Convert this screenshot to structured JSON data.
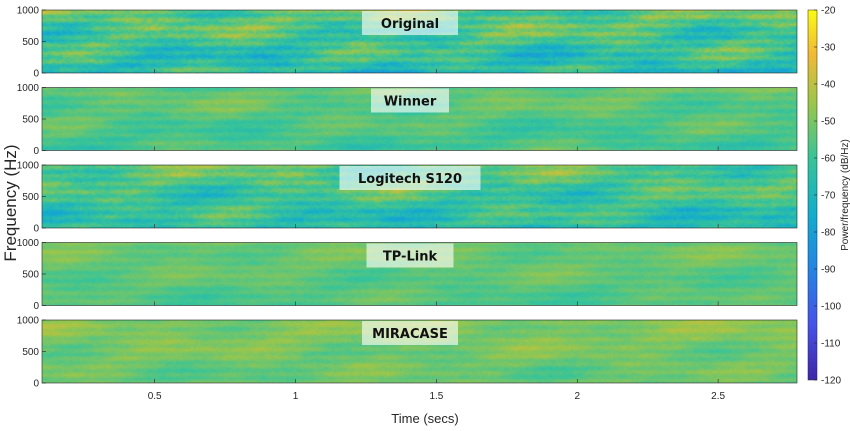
{
  "chart_data": {
    "type": "heatmap",
    "xlabel": "Time (secs)",
    "ylabel": "Frequency (Hz)",
    "x_range": [
      0.1,
      2.78
    ],
    "x_ticks": [
      "0.5",
      "1",
      "1.5",
      "2",
      "2.5"
    ],
    "x_tick_values": [
      0.5,
      1,
      1.5,
      2,
      2.5
    ],
    "y_range": [
      0,
      1000
    ],
    "y_ticks": [
      "0",
      "500",
      "1000"
    ],
    "y_tick_values": [
      0,
      500,
      1000
    ],
    "colorbar": {
      "label": "Power/frequency (dB/Hz)",
      "range": [
        -120,
        -20
      ],
      "ticks": [
        "-20",
        "-30",
        "-40",
        "-50",
        "-60",
        "-70",
        "-80",
        "-90",
        "-100",
        "-110",
        "-120"
      ],
      "tick_values": [
        -20,
        -30,
        -40,
        -50,
        -60,
        -70,
        -80,
        -90,
        -100,
        -110,
        -120
      ],
      "colormap": "parula"
    },
    "panels": [
      {
        "title": "Original",
        "mean_db": -60,
        "contrast": 20,
        "seed": 11
      },
      {
        "title": "Winner",
        "mean_db": -56,
        "contrast": 10,
        "seed": 23
      },
      {
        "title": "Logitech S120",
        "mean_db": -60,
        "contrast": 17,
        "seed": 37
      },
      {
        "title": "TP-Link",
        "mean_db": -54,
        "contrast": 8,
        "seed": 41
      },
      {
        "title": "MIRACASE",
        "mean_db": -51,
        "contrast": 9,
        "seed": 53
      }
    ]
  }
}
